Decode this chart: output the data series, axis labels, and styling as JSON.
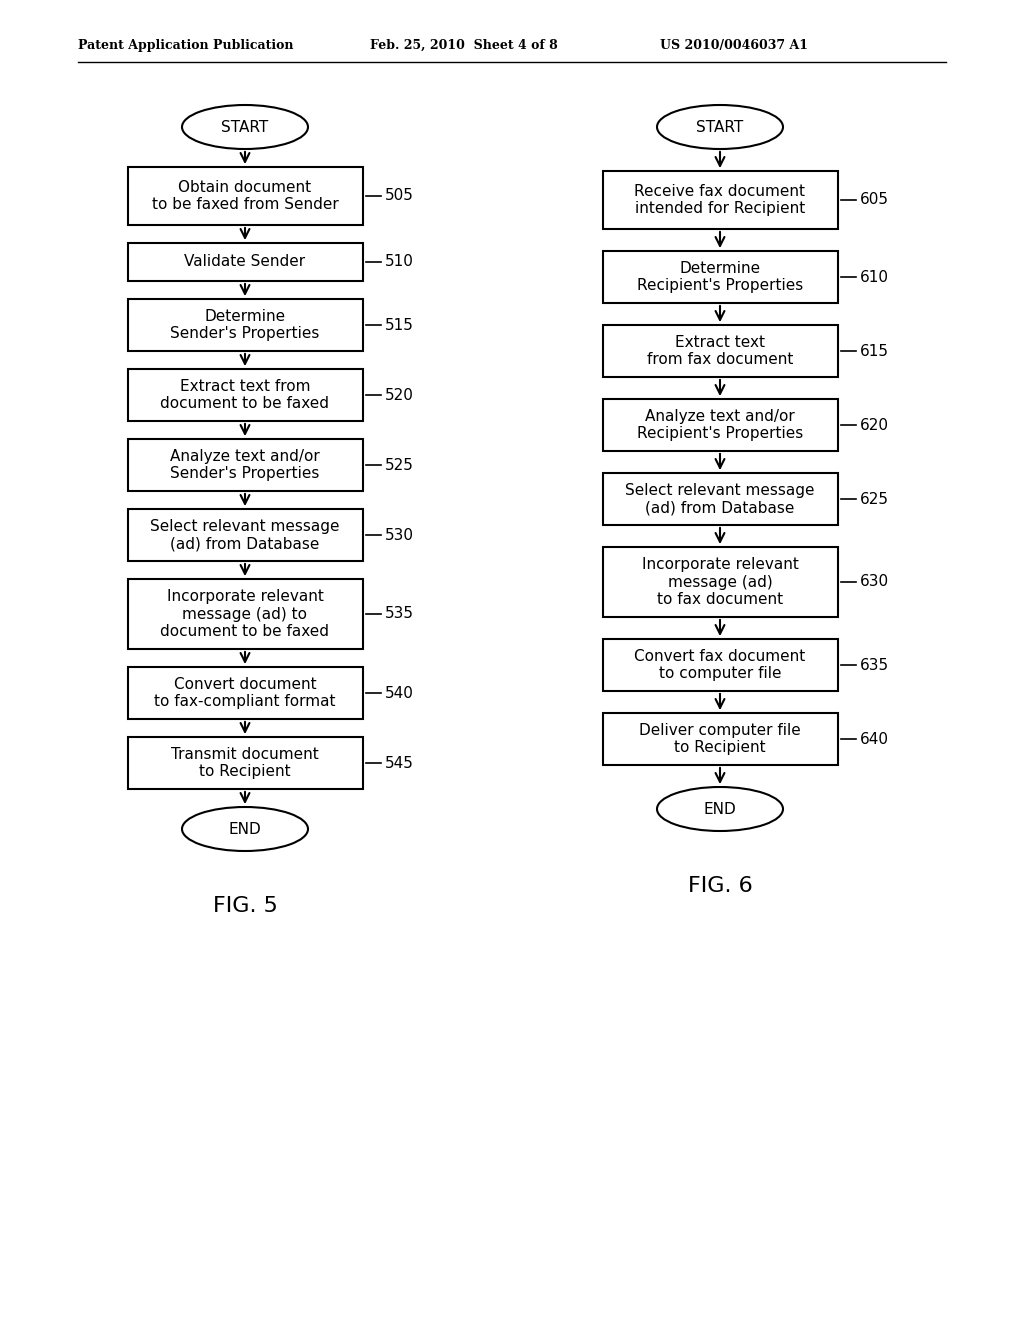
{
  "header_left": "Patent Application Publication",
  "header_mid": "Feb. 25, 2010  Sheet 4 of 8",
  "header_right": "US 2010/0046037 A1",
  "fig5_label": "FIG. 5",
  "fig6_label": "FIG. 6",
  "fig5_nodes": [
    {
      "id": "start5",
      "type": "terminal",
      "text": "START",
      "label": ""
    },
    {
      "id": "505",
      "type": "process",
      "text": "Obtain document\nto be faxed from Sender",
      "label": "505"
    },
    {
      "id": "510",
      "type": "process",
      "text": "Validate Sender",
      "label": "510"
    },
    {
      "id": "515",
      "type": "process",
      "text": "Determine\nSender's Properties",
      "label": "515"
    },
    {
      "id": "520",
      "type": "process",
      "text": "Extract text from\ndocument to be faxed",
      "label": "520"
    },
    {
      "id": "525",
      "type": "process",
      "text": "Analyze text and/or\nSender's Properties",
      "label": "525"
    },
    {
      "id": "530",
      "type": "process",
      "text": "Select relevant message\n(ad) from Database",
      "label": "530"
    },
    {
      "id": "535",
      "type": "process",
      "text": "Incorporate relevant\nmessage (ad) to\ndocument to be faxed",
      "label": "535"
    },
    {
      "id": "540",
      "type": "process",
      "text": "Convert document\nto fax-compliant format",
      "label": "540"
    },
    {
      "id": "545",
      "type": "process",
      "text": "Transmit document\nto Recipient",
      "label": "545"
    },
    {
      "id": "end5",
      "type": "terminal",
      "text": "END",
      "label": ""
    }
  ],
  "fig6_nodes": [
    {
      "id": "start6",
      "type": "terminal",
      "text": "START",
      "label": ""
    },
    {
      "id": "605",
      "type": "process",
      "text": "Receive fax document\nintended for Recipient",
      "label": "605"
    },
    {
      "id": "610",
      "type": "process",
      "text": "Determine\nRecipient's Properties",
      "label": "610"
    },
    {
      "id": "615",
      "type": "process",
      "text": "Extract text\nfrom fax document",
      "label": "615"
    },
    {
      "id": "620",
      "type": "process",
      "text": "Analyze text and/or\nRecipient's Properties",
      "label": "620"
    },
    {
      "id": "625",
      "type": "process",
      "text": "Select relevant message\n(ad) from Database",
      "label": "625"
    },
    {
      "id": "630",
      "type": "process",
      "text": "Incorporate relevant\nmessage (ad)\nto fax document",
      "label": "630"
    },
    {
      "id": "635",
      "type": "process",
      "text": "Convert fax document\nto computer file",
      "label": "635"
    },
    {
      "id": "640",
      "type": "process",
      "text": "Deliver computer file\nto Recipient",
      "label": "640"
    },
    {
      "id": "end6",
      "type": "terminal",
      "text": "END",
      "label": ""
    }
  ],
  "bg_color": "#ffffff",
  "text_color": "#000000"
}
